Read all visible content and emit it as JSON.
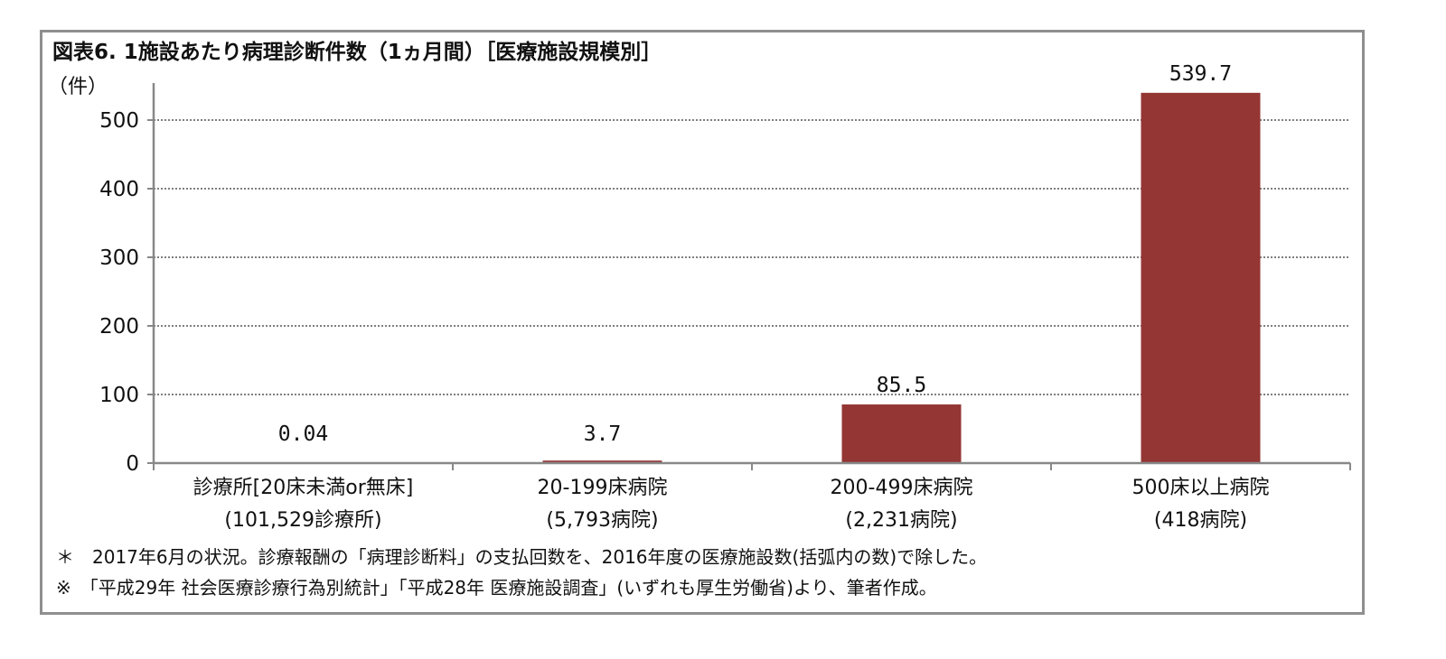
{
  "chart_data": {
    "type": "bar",
    "title": "図表6. 1施設あたり病理診断件数（1ヵ月間）［医療施設規模別］",
    "ylabel": "（件）",
    "ylim": [
      0,
      540
    ],
    "yticks": [
      0,
      100,
      200,
      300,
      400,
      500
    ],
    "ytick_labels": [
      "0",
      "100",
      "200",
      "300",
      "400",
      "500"
    ],
    "grid": true,
    "bar_color": "#943634",
    "categories": [
      [
        "診療所[20床未満or無床]",
        "(101,529診療所)"
      ],
      [
        "20-199床病院",
        "(5,793病院)"
      ],
      [
        "200-499床病院",
        "(2,231病院)"
      ],
      [
        "500床以上病院",
        "(418病院)"
      ]
    ],
    "values": [
      0.04,
      3.7,
      85.5,
      539.7
    ],
    "value_labels": [
      "0.04",
      "3.7",
      "85.5",
      "539.7"
    ]
  },
  "footnotes": {
    "note1": "＊　2017年6月の状況。診療報酬の「病理診断料」の支払回数を、2016年度の医療施設数(括弧内の数)で除した。",
    "note2": "※　「平成29年 社会医療診療行為別統計」「平成28年 医療施設調査」(いずれも厚生労働省)より、筆者作成。"
  }
}
